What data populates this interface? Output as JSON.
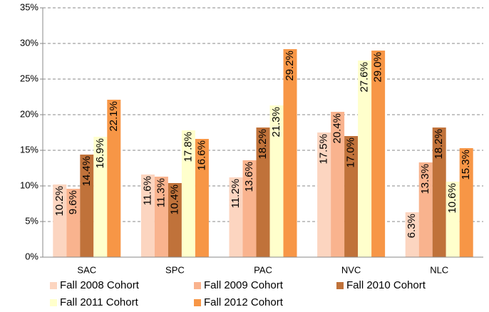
{
  "chart_data": {
    "type": "bar",
    "categories": [
      "SAC",
      "SPC",
      "PAC",
      "NVC",
      "NLC"
    ],
    "series": [
      {
        "name": "Fall 2008 Cohort",
        "color": "#fcd5c0",
        "values": [
          10.2,
          11.6,
          11.2,
          17.5,
          6.3
        ],
        "value_labels": [
          "10.2%",
          "11.6%",
          "11.2%",
          "17.5%",
          "6.3%"
        ]
      },
      {
        "name": "Fall 2009 Cohort",
        "color": "#f9b38e",
        "values": [
          9.6,
          11.3,
          13.6,
          20.4,
          13.3
        ],
        "value_labels": [
          "9.6%",
          "11.3%",
          "13.6%",
          "20.4%",
          "13.3%"
        ]
      },
      {
        "name": "Fall 2010 Cohort",
        "color": "#c0723a",
        "values": [
          14.4,
          10.4,
          18.2,
          17.0,
          18.2
        ],
        "value_labels": [
          "14.4%",
          "10.4%",
          "18.2%",
          "17.0%",
          "18.2%"
        ]
      },
      {
        "name": "Fall 2011 Cohort",
        "color": "#ffffcc",
        "values": [
          16.9,
          17.8,
          21.3,
          27.6,
          10.6
        ],
        "value_labels": [
          "16.9%",
          "17.8%",
          "21.3%",
          "27.6%",
          "10.6%"
        ]
      },
      {
        "name": "Fall 2012 Cohort",
        "color": "#f79646",
        "values": [
          22.1,
          16.6,
          29.2,
          29.0,
          15.3
        ],
        "value_labels": [
          "22.1%",
          "16.6%",
          "29.2%",
          "29.0%",
          "15.3%"
        ]
      }
    ],
    "ylim": [
      0,
      35
    ],
    "yticks": [
      {
        "value": 0,
        "label": "0%"
      },
      {
        "value": 5,
        "label": "5%"
      },
      {
        "value": 10,
        "label": "10%"
      },
      {
        "value": 15,
        "label": "15%"
      },
      {
        "value": 20,
        "label": "20%"
      },
      {
        "value": 25,
        "label": "25%"
      },
      {
        "value": 30,
        "label": "30%"
      },
      {
        "value": 35,
        "label": "35%"
      }
    ],
    "grid": true,
    "legend": "bottom"
  }
}
